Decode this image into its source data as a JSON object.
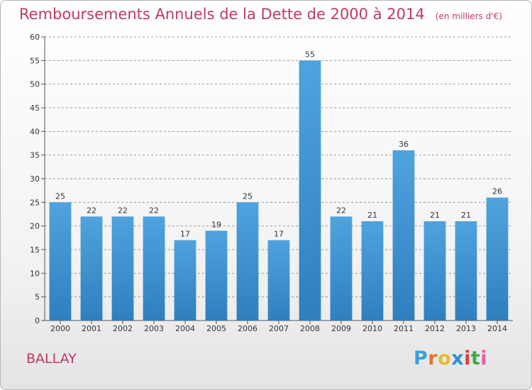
{
  "title": "Remboursements Annuels de la Dette de 2000 à 2014",
  "subtitle": "(en milliers d'€)",
  "commune": "BALLAY",
  "logo": {
    "letters": [
      "P",
      "r",
      "o",
      "x",
      "i",
      "t",
      "i"
    ],
    "colors": [
      "#3aa0d8",
      "#e0752d",
      "#e8b92b",
      "#2e8ed2",
      "#e23b3b",
      "#3daa4a",
      "#e85da3"
    ]
  },
  "colors": {
    "bar": "#4fa3de",
    "bar_dark": "#2f7fbf",
    "title": "#c0395f",
    "grid": "#9a9a9a"
  },
  "chart_data": {
    "type": "bar",
    "categories": [
      "2000",
      "2001",
      "2002",
      "2003",
      "2004",
      "2005",
      "2006",
      "2007",
      "2008",
      "2009",
      "2010",
      "2011",
      "2012",
      "2013",
      "2014"
    ],
    "values": [
      25,
      22,
      22,
      22,
      17,
      19,
      25,
      17,
      55,
      22,
      21,
      36,
      21,
      21,
      26
    ],
    "ylim": [
      0,
      60
    ],
    "yticks": [
      0,
      5,
      10,
      15,
      20,
      25,
      30,
      35,
      40,
      45,
      50,
      55,
      60
    ],
    "grid": "horizontal dashed"
  }
}
